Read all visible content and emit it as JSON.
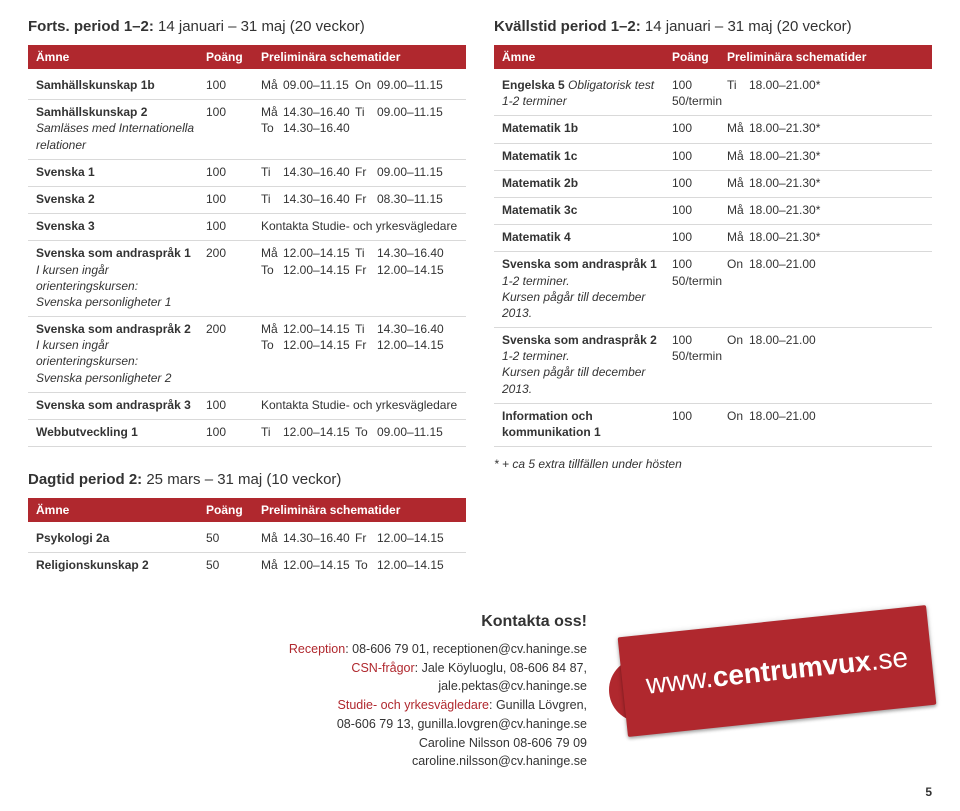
{
  "colors": {
    "accent": "#b0282e",
    "text": "#333333",
    "border": "#d9d9d9",
    "white": "#ffffff"
  },
  "page_number": "5",
  "url_line1": "www.",
  "url_line2": "centrumvux",
  "url_line3": ".se",
  "left": {
    "title_bold": "Forts. period 1–2:",
    "title_light": " 14 januari – 31 maj (20 veckor)",
    "header_subject": "Ämne",
    "header_points": "Poäng",
    "header_sched": "Preliminära schematider",
    "rows": [
      {
        "subject": "Samhällskunskap 1b",
        "pts": "100",
        "sched": [
          [
            "Må",
            "09.00–11.15",
            "On",
            "09.00–11.15"
          ]
        ]
      },
      {
        "subject": "Samhällskunskap 2",
        "sub": "Samläses med Internationella relationer",
        "pts": "100",
        "sched": [
          [
            "Må",
            "14.30–16.40",
            "Ti",
            "09.00–11.15"
          ],
          [
            "To",
            "14.30–16.40",
            "",
            ""
          ]
        ]
      },
      {
        "subject": "Svenska 1",
        "pts": "100",
        "sched": [
          [
            "Ti",
            "14.30–16.40",
            "Fr",
            "09.00–11.15"
          ]
        ]
      },
      {
        "subject": "Svenska 2",
        "pts": "100",
        "sched": [
          [
            "Ti",
            "14.30–16.40",
            "Fr",
            "08.30–11.15"
          ]
        ]
      },
      {
        "subject": "Svenska 3",
        "pts": "100",
        "kontakta": "Kontakta Studie- och yrkesvägledare"
      },
      {
        "subject": "Svenska som andraspråk 1",
        "sub": "I kursen ingår orienteringskursen:\nSvenska personligheter 1",
        "pts": "200",
        "sched": [
          [
            "Må",
            "12.00–14.15",
            "Ti",
            "14.30–16.40"
          ],
          [
            "To",
            "12.00–14.15",
            "Fr",
            "12.00–14.15"
          ]
        ]
      },
      {
        "subject": "Svenska som andraspråk 2",
        "sub": "I kursen ingår orienteringskursen:\nSvenska personligheter 2",
        "pts": "200",
        "sched": [
          [
            "Må",
            "12.00–14.15",
            "Ti",
            "14.30–16.40"
          ],
          [
            "To",
            "12.00–14.15",
            "Fr",
            "12.00–14.15"
          ]
        ]
      },
      {
        "subject": "Svenska som andraspråk 3",
        "pts": "100",
        "kontakta": "Kontakta Studie- och yrkesvägledare"
      },
      {
        "subject": "Webbutveckling 1",
        "pts": "100",
        "sched": [
          [
            "Ti",
            "12.00–14.15",
            "To",
            "09.00–11.15"
          ]
        ]
      }
    ]
  },
  "right": {
    "title_bold": "Kvällstid period 1–2:",
    "title_light": " 14 januari – 31 maj (20 veckor)",
    "header_subject": "Ämne",
    "header_points": "Poäng",
    "header_sched": "Preliminära schematider",
    "rows": [
      {
        "subject": "Engelska 5",
        "bold_sub": "Obligatorisk test",
        "sub": "1-2 terminer",
        "pts": "100\n50/termin",
        "sched": [
          [
            "Ti",
            "18.00–21.00*",
            "",
            ""
          ]
        ]
      },
      {
        "subject": "Matematik 1b",
        "pts": "100",
        "sched": [
          [
            "Må",
            "18.00–21.30*",
            "",
            ""
          ]
        ]
      },
      {
        "subject": "Matematik 1c",
        "pts": "100",
        "sched": [
          [
            "Må",
            "18.00–21.30*",
            "",
            ""
          ]
        ]
      },
      {
        "subject": "Matematik 2b",
        "pts": "100",
        "sched": [
          [
            "Må",
            "18.00–21.30*",
            "",
            ""
          ]
        ]
      },
      {
        "subject": "Matematik 3c",
        "pts": "100",
        "sched": [
          [
            "Må",
            "18.00–21.30*",
            "",
            ""
          ]
        ]
      },
      {
        "subject": "Matematik 4",
        "pts": "100",
        "sched": [
          [
            "Må",
            "18.00–21.30*",
            "",
            ""
          ]
        ]
      },
      {
        "subject": "Svenska som andraspråk 1",
        "sub": "1-2 terminer.\nKursen pågår till december 2013.",
        "pts": "100\n50/termin",
        "sched": [
          [
            "On",
            "18.00–21.00",
            "",
            ""
          ]
        ]
      },
      {
        "subject": "Svenska som andraspråk 2",
        "sub": "1-2 terminer.\nKursen pågår till december 2013.",
        "pts": "100\n50/termin",
        "sched": [
          [
            "On",
            "18.00–21.00",
            "",
            ""
          ]
        ]
      },
      {
        "subject": "Information och kommunikation 1",
        "pts": "100",
        "sched": [
          [
            "On",
            "18.00–21.00",
            "",
            ""
          ]
        ]
      }
    ],
    "footnote": "* + ca 5 extra tillfällen under hösten"
  },
  "bottom": {
    "title_bold": "Dagtid period 2:",
    "title_light": " 25 mars – 31 maj (10 veckor)",
    "header_subject": "Ämne",
    "header_points": "Poäng",
    "header_sched": "Preliminära schematider",
    "rows": [
      {
        "subject": "Psykologi 2a",
        "pts": "50",
        "sched": [
          [
            "Må",
            "14.30–16.40",
            "Fr",
            "12.00–14.15"
          ]
        ]
      },
      {
        "subject": "Religionskunskap 2",
        "pts": "50",
        "sched": [
          [
            "Må",
            "12.00–14.15",
            "To",
            "12.00–14.15"
          ]
        ]
      }
    ]
  },
  "contact": {
    "title": "Kontakta oss!",
    "lines": [
      {
        "label": "Reception",
        "text": ": 08-606 79 01, receptionen@cv.haninge.se"
      },
      {
        "label": "CSN-frågor",
        "text": ": Jale Köyluoglu, 08-606 84 87,"
      },
      {
        "label": "",
        "text": "jale.pektas@cv.haninge.se"
      },
      {
        "label": "Studie- och yrkesvägledare",
        "text": ": Gunilla Lövgren,"
      },
      {
        "label": "",
        "text": "08-606 79 13, gunilla.lovgren@cv.haninge.se"
      },
      {
        "label": "",
        "text": "Caroline Nilsson 08-606 79 09"
      },
      {
        "label": "",
        "text": "caroline.nilsson@cv.haninge.se"
      }
    ]
  }
}
